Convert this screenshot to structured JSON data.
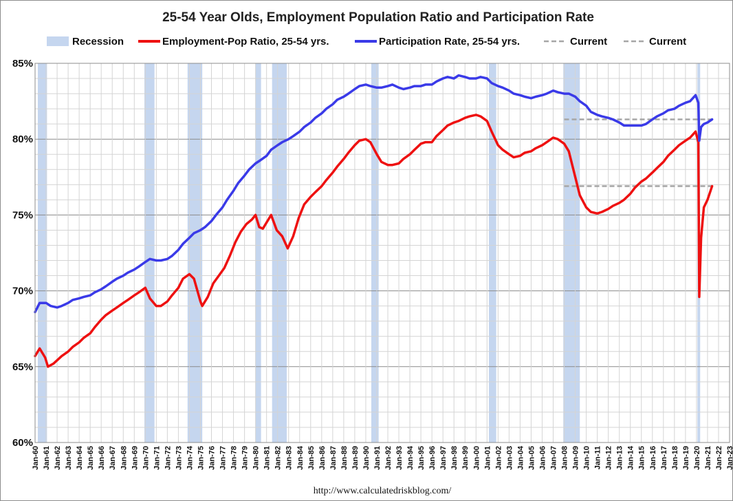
{
  "chart_data": {
    "type": "line",
    "title": "25-54 Year Olds, Employment Population Ratio and Participation Rate",
    "source": "http://www.calculatedriskblog.com/",
    "ylim": [
      60,
      85
    ],
    "y_ticks": [
      "60%",
      "65%",
      "70%",
      "75%",
      "80%",
      "85%"
    ],
    "y_tick_values": [
      60,
      65,
      70,
      75,
      80,
      85
    ],
    "x_range": [
      "1960-01",
      "2023-01"
    ],
    "x_tick_labels": [
      "Jan-60",
      "Jan-61",
      "Jan-62",
      "Jan-63",
      "Jan-64",
      "Jan-65",
      "Jan-66",
      "Jan-67",
      "Jan-68",
      "Jan-69",
      "Jan-70",
      "Jan-71",
      "Jan-72",
      "Jan-73",
      "Jan-74",
      "Jan-75",
      "Jan-76",
      "Jan-77",
      "Jan-78",
      "Jan-79",
      "Jan-80",
      "Jan-81",
      "Jan-82",
      "Jan-83",
      "Jan-84",
      "Jan-85",
      "Jan-86",
      "Jan-87",
      "Jan-88",
      "Jan-89",
      "Jan-90",
      "Jan-91",
      "Jan-92",
      "Jan-93",
      "Jan-94",
      "Jan-95",
      "Jan-96",
      "Jan-97",
      "Jan-98",
      "Jan-99",
      "Jan-00",
      "Jan-01",
      "Jan-02",
      "Jan-03",
      "Jan-04",
      "Jan-05",
      "Jan-06",
      "Jan-07",
      "Jan-08",
      "Jan-09",
      "Jan-10",
      "Jan-11",
      "Jan-12",
      "Jan-13",
      "Jan-14",
      "Jan-15",
      "Jan-16",
      "Jan-17",
      "Jan-18",
      "Jan-19",
      "Jan-20",
      "Jan-21",
      "Jan-22",
      "Jan-23"
    ],
    "grid": true,
    "legend_position": "top",
    "legend": [
      {
        "label": "Recession",
        "type": "band",
        "color": "#c5d6ef"
      },
      {
        "label": "Employment-Pop Ratio, 25-54 yrs.",
        "type": "line",
        "color": "#ee1111"
      },
      {
        "label": "Participation Rate, 25-54 yrs.",
        "type": "line",
        "color": "#3a3ae8"
      },
      {
        "label": "Current",
        "type": "dash",
        "color": "#a6a6a6"
      },
      {
        "label": "Current",
        "type": "dash",
        "color": "#a6a6a6"
      }
    ],
    "recessions": [
      [
        "1960-04",
        "1961-02"
      ],
      [
        "1969-12",
        "1970-11"
      ],
      [
        "1973-11",
        "1975-03"
      ],
      [
        "1980-01",
        "1980-07"
      ],
      [
        "1981-07",
        "1982-11"
      ],
      [
        "1990-07",
        "1991-03"
      ],
      [
        "2001-03",
        "2001-11"
      ],
      [
        "2007-12",
        "2009-06"
      ],
      [
        "2020-02",
        "2020-04"
      ]
    ],
    "current_lines": [
      {
        "value": 81.3,
        "from": "2008-01",
        "to": "2021-06"
      },
      {
        "value": 76.9,
        "from": "2008-01",
        "to": "2021-06"
      }
    ],
    "series": [
      {
        "name": "Employment-Pop Ratio, 25-54 yrs.",
        "color": "#ee1111",
        "points": [
          [
            "1960-01",
            65.7
          ],
          [
            "1960-06",
            66.2
          ],
          [
            "1960-12",
            65.6
          ],
          [
            "1961-03",
            65.0
          ],
          [
            "1961-09",
            65.2
          ],
          [
            "1962-06",
            65.7
          ],
          [
            "1963-01",
            66.0
          ],
          [
            "1963-06",
            66.3
          ],
          [
            "1964-01",
            66.6
          ],
          [
            "1964-06",
            66.9
          ],
          [
            "1965-01",
            67.2
          ],
          [
            "1965-06",
            67.6
          ],
          [
            "1966-01",
            68.1
          ],
          [
            "1966-06",
            68.4
          ],
          [
            "1967-01",
            68.7
          ],
          [
            "1967-06",
            68.9
          ],
          [
            "1968-01",
            69.2
          ],
          [
            "1968-06",
            69.4
          ],
          [
            "1969-01",
            69.7
          ],
          [
            "1969-06",
            69.9
          ],
          [
            "1970-01",
            70.2
          ],
          [
            "1970-06",
            69.5
          ],
          [
            "1971-01",
            69.0
          ],
          [
            "1971-06",
            69.0
          ],
          [
            "1972-01",
            69.3
          ],
          [
            "1972-06",
            69.7
          ],
          [
            "1973-01",
            70.2
          ],
          [
            "1973-06",
            70.8
          ],
          [
            "1974-01",
            71.1
          ],
          [
            "1974-06",
            70.8
          ],
          [
            "1975-01",
            69.3
          ],
          [
            "1975-03",
            69.0
          ],
          [
            "1975-09",
            69.6
          ],
          [
            "1976-03",
            70.5
          ],
          [
            "1976-09",
            71.0
          ],
          [
            "1977-03",
            71.5
          ],
          [
            "1977-09",
            72.3
          ],
          [
            "1978-03",
            73.2
          ],
          [
            "1978-09",
            73.9
          ],
          [
            "1979-03",
            74.4
          ],
          [
            "1979-09",
            74.7
          ],
          [
            "1980-01",
            75.0
          ],
          [
            "1980-05",
            74.2
          ],
          [
            "1980-09",
            74.1
          ],
          [
            "1981-03",
            74.7
          ],
          [
            "1981-06",
            75.0
          ],
          [
            "1981-12",
            74.0
          ],
          [
            "1982-06",
            73.6
          ],
          [
            "1982-12",
            72.8
          ],
          [
            "1983-06",
            73.6
          ],
          [
            "1983-12",
            74.8
          ],
          [
            "1984-06",
            75.7
          ],
          [
            "1985-01",
            76.2
          ],
          [
            "1985-06",
            76.5
          ],
          [
            "1986-01",
            76.9
          ],
          [
            "1986-06",
            77.3
          ],
          [
            "1987-01",
            77.8
          ],
          [
            "1987-06",
            78.2
          ],
          [
            "1988-01",
            78.7
          ],
          [
            "1988-06",
            79.1
          ],
          [
            "1989-01",
            79.6
          ],
          [
            "1989-06",
            79.9
          ],
          [
            "1990-01",
            80.0
          ],
          [
            "1990-06",
            79.8
          ],
          [
            "1991-01",
            79.0
          ],
          [
            "1991-06",
            78.5
          ],
          [
            "1992-01",
            78.3
          ],
          [
            "1992-06",
            78.3
          ],
          [
            "1993-01",
            78.4
          ],
          [
            "1993-06",
            78.7
          ],
          [
            "1994-01",
            79.0
          ],
          [
            "1994-06",
            79.3
          ],
          [
            "1995-01",
            79.7
          ],
          [
            "1995-06",
            79.8
          ],
          [
            "1996-01",
            79.8
          ],
          [
            "1996-06",
            80.2
          ],
          [
            "1997-01",
            80.6
          ],
          [
            "1997-06",
            80.9
          ],
          [
            "1998-01",
            81.1
          ],
          [
            "1998-06",
            81.2
          ],
          [
            "1999-01",
            81.4
          ],
          [
            "1999-06",
            81.5
          ],
          [
            "2000-01",
            81.6
          ],
          [
            "2000-06",
            81.5
          ],
          [
            "2001-01",
            81.2
          ],
          [
            "2001-06",
            80.5
          ],
          [
            "2002-01",
            79.6
          ],
          [
            "2002-06",
            79.3
          ],
          [
            "2003-01",
            79.0
          ],
          [
            "2003-06",
            78.8
          ],
          [
            "2004-01",
            78.9
          ],
          [
            "2004-06",
            79.1
          ],
          [
            "2005-01",
            79.2
          ],
          [
            "2005-06",
            79.4
          ],
          [
            "2006-01",
            79.6
          ],
          [
            "2006-06",
            79.8
          ],
          [
            "2007-01",
            80.1
          ],
          [
            "2007-06",
            80.0
          ],
          [
            "2008-01",
            79.7
          ],
          [
            "2008-06",
            79.2
          ],
          [
            "2009-01",
            77.5
          ],
          [
            "2009-06",
            76.3
          ],
          [
            "2010-01",
            75.5
          ],
          [
            "2010-06",
            75.2
          ],
          [
            "2011-01",
            75.1
          ],
          [
            "2011-06",
            75.2
          ],
          [
            "2012-01",
            75.4
          ],
          [
            "2012-06",
            75.6
          ],
          [
            "2013-01",
            75.8
          ],
          [
            "2013-06",
            76.0
          ],
          [
            "2014-01",
            76.4
          ],
          [
            "2014-06",
            76.8
          ],
          [
            "2015-01",
            77.2
          ],
          [
            "2015-06",
            77.4
          ],
          [
            "2016-01",
            77.8
          ],
          [
            "2016-06",
            78.1
          ],
          [
            "2017-01",
            78.5
          ],
          [
            "2017-06",
            78.9
          ],
          [
            "2018-01",
            79.3
          ],
          [
            "2018-06",
            79.6
          ],
          [
            "2019-01",
            79.9
          ],
          [
            "2019-06",
            80.1
          ],
          [
            "2019-12",
            80.5
          ],
          [
            "2020-03",
            79.8
          ],
          [
            "2020-04",
            69.6
          ],
          [
            "2020-06",
            73.5
          ],
          [
            "2020-09",
            75.5
          ],
          [
            "2021-01",
            76.0
          ],
          [
            "2021-06",
            76.9
          ]
        ]
      },
      {
        "name": "Participation Rate, 25-54 yrs.",
        "color": "#3a3ae8",
        "points": [
          [
            "1960-01",
            68.6
          ],
          [
            "1960-06",
            69.2
          ],
          [
            "1961-01",
            69.2
          ],
          [
            "1961-06",
            69.0
          ],
          [
            "1962-01",
            68.9
          ],
          [
            "1962-06",
            69.0
          ],
          [
            "1963-01",
            69.2
          ],
          [
            "1963-06",
            69.4
          ],
          [
            "1964-01",
            69.5
          ],
          [
            "1964-06",
            69.6
          ],
          [
            "1965-01",
            69.7
          ],
          [
            "1965-06",
            69.9
          ],
          [
            "1966-01",
            70.1
          ],
          [
            "1966-06",
            70.3
          ],
          [
            "1967-01",
            70.6
          ],
          [
            "1967-06",
            70.8
          ],
          [
            "1968-01",
            71.0
          ],
          [
            "1968-06",
            71.2
          ],
          [
            "1969-01",
            71.4
          ],
          [
            "1969-06",
            71.6
          ],
          [
            "1970-01",
            71.9
          ],
          [
            "1970-06",
            72.1
          ],
          [
            "1971-01",
            72.0
          ],
          [
            "1971-06",
            72.0
          ],
          [
            "1972-01",
            72.1
          ],
          [
            "1972-06",
            72.3
          ],
          [
            "1973-01",
            72.7
          ],
          [
            "1973-06",
            73.1
          ],
          [
            "1974-01",
            73.5
          ],
          [
            "1974-06",
            73.8
          ],
          [
            "1975-01",
            74.0
          ],
          [
            "1975-06",
            74.2
          ],
          [
            "1976-01",
            74.6
          ],
          [
            "1976-06",
            75.0
          ],
          [
            "1977-01",
            75.5
          ],
          [
            "1977-06",
            76.0
          ],
          [
            "1978-01",
            76.6
          ],
          [
            "1978-06",
            77.1
          ],
          [
            "1979-01",
            77.6
          ],
          [
            "1979-06",
            78.0
          ],
          [
            "1980-01",
            78.4
          ],
          [
            "1980-06",
            78.6
          ],
          [
            "1981-01",
            78.9
          ],
          [
            "1981-06",
            79.3
          ],
          [
            "1982-01",
            79.6
          ],
          [
            "1982-06",
            79.8
          ],
          [
            "1983-01",
            80.0
          ],
          [
            "1983-06",
            80.2
          ],
          [
            "1984-01",
            80.5
          ],
          [
            "1984-06",
            80.8
          ],
          [
            "1985-01",
            81.1
          ],
          [
            "1985-06",
            81.4
          ],
          [
            "1986-01",
            81.7
          ],
          [
            "1986-06",
            82.0
          ],
          [
            "1987-01",
            82.3
          ],
          [
            "1987-06",
            82.6
          ],
          [
            "1988-01",
            82.8
          ],
          [
            "1988-06",
            83.0
          ],
          [
            "1989-01",
            83.3
          ],
          [
            "1989-06",
            83.5
          ],
          [
            "1990-01",
            83.6
          ],
          [
            "1990-06",
            83.5
          ],
          [
            "1991-01",
            83.4
          ],
          [
            "1991-06",
            83.4
          ],
          [
            "1992-01",
            83.5
          ],
          [
            "1992-06",
            83.6
          ],
          [
            "1993-01",
            83.4
          ],
          [
            "1993-06",
            83.3
          ],
          [
            "1994-01",
            83.4
          ],
          [
            "1994-06",
            83.5
          ],
          [
            "1995-01",
            83.5
          ],
          [
            "1995-06",
            83.6
          ],
          [
            "1996-01",
            83.6
          ],
          [
            "1996-06",
            83.8
          ],
          [
            "1997-01",
            84.0
          ],
          [
            "1997-06",
            84.1
          ],
          [
            "1998-01",
            84.0
          ],
          [
            "1998-06",
            84.2
          ],
          [
            "1999-01",
            84.1
          ],
          [
            "1999-06",
            84.0
          ],
          [
            "2000-01",
            84.0
          ],
          [
            "2000-06",
            84.1
          ],
          [
            "2001-01",
            84.0
          ],
          [
            "2001-06",
            83.7
          ],
          [
            "2002-01",
            83.5
          ],
          [
            "2002-06",
            83.4
          ],
          [
            "2003-01",
            83.2
          ],
          [
            "2003-06",
            83.0
          ],
          [
            "2004-01",
            82.9
          ],
          [
            "2004-06",
            82.8
          ],
          [
            "2005-01",
            82.7
          ],
          [
            "2005-06",
            82.8
          ],
          [
            "2006-01",
            82.9
          ],
          [
            "2006-06",
            83.0
          ],
          [
            "2007-01",
            83.2
          ],
          [
            "2007-06",
            83.1
          ],
          [
            "2008-01",
            83.0
          ],
          [
            "2008-06",
            83.0
          ],
          [
            "2009-01",
            82.8
          ],
          [
            "2009-06",
            82.5
          ],
          [
            "2010-01",
            82.2
          ],
          [
            "2010-06",
            81.8
          ],
          [
            "2011-01",
            81.6
          ],
          [
            "2011-06",
            81.5
          ],
          [
            "2012-01",
            81.4
          ],
          [
            "2012-06",
            81.3
          ],
          [
            "2013-01",
            81.1
          ],
          [
            "2013-06",
            80.9
          ],
          [
            "2014-01",
            80.9
          ],
          [
            "2014-06",
            80.9
          ],
          [
            "2015-01",
            80.9
          ],
          [
            "2015-06",
            81.0
          ],
          [
            "2016-01",
            81.3
          ],
          [
            "2016-06",
            81.5
          ],
          [
            "2017-01",
            81.7
          ],
          [
            "2017-06",
            81.9
          ],
          [
            "2018-01",
            82.0
          ],
          [
            "2018-06",
            82.2
          ],
          [
            "2019-01",
            82.4
          ],
          [
            "2019-06",
            82.5
          ],
          [
            "2019-12",
            82.9
          ],
          [
            "2020-03",
            82.4
          ],
          [
            "2020-04",
            79.9
          ],
          [
            "2020-06",
            80.8
          ],
          [
            "2020-09",
            81.0
          ],
          [
            "2021-01",
            81.1
          ],
          [
            "2021-06",
            81.3
          ]
        ]
      }
    ]
  }
}
